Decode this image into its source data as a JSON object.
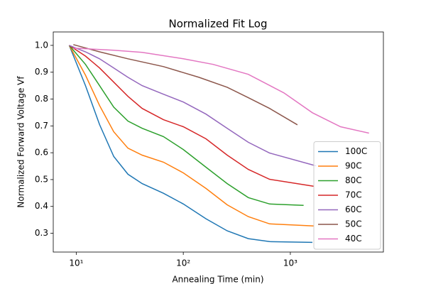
{
  "chart_data": {
    "type": "line",
    "title": "Normalized Fit Log",
    "x_label": "Annealing Time (min)",
    "y_label": "Normalized Forward Voltage Vf",
    "xscale": "log",
    "xlim": [
      6.1,
      7400
    ],
    "ylim": [
      0.23,
      1.05
    ],
    "xticks": [
      {
        "value": 10,
        "label": "10¹"
      },
      {
        "value": 100,
        "label": "10²"
      },
      {
        "value": 1000,
        "label": "10³"
      }
    ],
    "yticks": [
      0.3,
      0.4,
      0.5,
      0.6,
      0.7,
      0.8,
      0.9,
      {
        "value": 1.0,
        "label": "1.0"
      }
    ],
    "legend": "lower right",
    "series": [
      {
        "name": "100C",
        "color": "#1f77b4",
        "x": [
          8.6,
          12.2,
          16.5,
          22.4,
          30.4,
          41.3,
          65.3,
          100,
          163,
          257,
          405,
          640,
          1606
        ],
        "values": [
          1.0,
          0.85,
          0.705,
          0.586,
          0.52,
          0.485,
          0.449,
          0.409,
          0.354,
          0.309,
          0.28,
          0.269,
          0.266
        ]
      },
      {
        "name": "90C",
        "color": "#ff7f0e",
        "x": [
          8.6,
          12.2,
          16.5,
          22.4,
          30.4,
          41.3,
          65.3,
          100,
          163,
          257,
          405,
          640,
          1660
        ],
        "values": [
          1.0,
          0.889,
          0.776,
          0.678,
          0.617,
          0.591,
          0.565,
          0.525,
          0.467,
          0.406,
          0.362,
          0.335,
          0.327
        ]
      },
      {
        "name": "80C",
        "color": "#2ca02c",
        "x": [
          8.6,
          12.2,
          16.5,
          22.4,
          30.4,
          41.3,
          65.3,
          100,
          163,
          257,
          405,
          640,
          1330
        ],
        "values": [
          1.0,
          0.929,
          0.85,
          0.77,
          0.718,
          0.691,
          0.66,
          0.612,
          0.546,
          0.485,
          0.433,
          0.409,
          0.404
        ]
      },
      {
        "name": "70C",
        "color": "#d62728",
        "x": [
          8.6,
          12.2,
          16.5,
          22.4,
          30.4,
          41.3,
          65.3,
          100,
          163,
          257,
          405,
          640,
          1660
        ],
        "values": [
          1.0,
          0.96,
          0.916,
          0.863,
          0.81,
          0.765,
          0.723,
          0.697,
          0.652,
          0.591,
          0.538,
          0.501,
          0.475
        ]
      },
      {
        "name": "60C",
        "color": "#9467bd",
        "x": [
          8.6,
          12.2,
          16.5,
          22.4,
          30.4,
          41.3,
          65.3,
          100,
          163,
          257,
          405,
          640,
          1740
        ],
        "values": [
          1.0,
          0.976,
          0.95,
          0.916,
          0.881,
          0.85,
          0.818,
          0.789,
          0.744,
          0.691,
          0.639,
          0.599,
          0.551
        ]
      },
      {
        "name": "50C",
        "color": "#8c564b",
        "x": [
          9.4,
          16.5,
          30.4,
          65.3,
          140,
          257,
          405,
          640,
          1165
        ],
        "values": [
          1.003,
          0.976,
          0.95,
          0.921,
          0.881,
          0.844,
          0.805,
          0.765,
          0.704
        ]
      },
      {
        "name": "40C",
        "color": "#e377c2",
        "x": [
          9.4,
          22.4,
          41.3,
          100,
          190,
          405,
          870,
          1606,
          2940,
          5430
        ],
        "values": [
          0.99,
          0.982,
          0.974,
          0.95,
          0.929,
          0.892,
          0.823,
          0.749,
          0.697,
          0.673
        ]
      }
    ]
  }
}
